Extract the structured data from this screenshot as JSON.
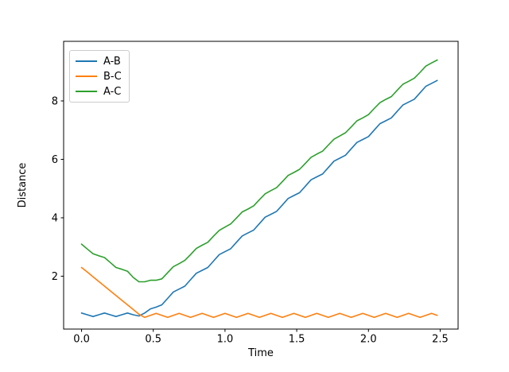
{
  "figure": {
    "background": "#ffffff",
    "axis_color": "#000000",
    "legend_border_color": "#cccccc"
  },
  "chart_data": {
    "type": "line",
    "title": "",
    "xlabel": "Time",
    "ylabel": "Distance",
    "xlim": [
      -0.125,
      2.625
    ],
    "ylim": [
      0.19,
      10.04
    ],
    "xticks": [
      0.0,
      0.5,
      1.0,
      1.5,
      2.0,
      2.5
    ],
    "xtick_labels": [
      "0.0",
      "0.5",
      "1.0",
      "1.5",
      "2.0",
      "2.5"
    ],
    "yticks": [
      2,
      4,
      6,
      8
    ],
    "ytick_labels": [
      "2",
      "4",
      "6",
      "8"
    ],
    "grid": false,
    "legend_position": "upper left",
    "x": [
      0,
      0.04,
      0.08,
      0.12,
      0.16,
      0.2,
      0.24,
      0.28,
      0.32,
      0.36,
      0.4,
      0.44,
      0.48,
      0.52,
      0.56,
      0.6,
      0.64,
      0.68,
      0.72,
      0.76,
      0.8,
      0.84,
      0.88,
      0.92,
      0.96,
      1,
      1.04,
      1.08,
      1.12,
      1.16,
      1.2,
      1.24,
      1.28,
      1.32,
      1.36,
      1.4,
      1.44,
      1.48,
      1.52,
      1.56,
      1.6,
      1.64,
      1.68,
      1.72,
      1.76,
      1.8,
      1.84,
      1.88,
      1.92,
      1.96,
      2,
      2.04,
      2.08,
      2.12,
      2.16,
      2.2,
      2.24,
      2.28,
      2.32,
      2.36,
      2.4,
      2.44,
      2.48
    ],
    "series": [
      {
        "name": "A-B",
        "color": "#1f77b4",
        "values": [
          0.74,
          0.68,
          0.62,
          0.68,
          0.74,
          0.68,
          0.62,
          0.68,
          0.74,
          0.68,
          0.64,
          0.74,
          0.88,
          0.94,
          1.02,
          1.24,
          1.46,
          1.56,
          1.66,
          1.88,
          2.1,
          2.2,
          2.3,
          2.52,
          2.74,
          2.84,
          2.94,
          3.16,
          3.38,
          3.48,
          3.58,
          3.8,
          4.02,
          4.12,
          4.22,
          4.44,
          4.66,
          4.76,
          4.86,
          5.08,
          5.3,
          5.4,
          5.5,
          5.72,
          5.94,
          6.04,
          6.14,
          6.36,
          6.58,
          6.68,
          6.78,
          7,
          7.22,
          7.32,
          7.42,
          7.64,
          7.86,
          7.96,
          8.06,
          8.28,
          8.5,
          8.6,
          8.7
        ]
      },
      {
        "name": "B-C",
        "color": "#ff7f0e",
        "values": [
          2.3,
          2.14,
          1.98,
          1.82,
          1.66,
          1.5,
          1.34,
          1.18,
          1.02,
          0.86,
          0.7,
          0.59,
          0.66,
          0.73,
          0.66,
          0.59,
          0.66,
          0.73,
          0.66,
          0.59,
          0.66,
          0.73,
          0.66,
          0.59,
          0.66,
          0.73,
          0.66,
          0.59,
          0.66,
          0.73,
          0.66,
          0.59,
          0.66,
          0.73,
          0.66,
          0.59,
          0.66,
          0.73,
          0.66,
          0.59,
          0.66,
          0.73,
          0.66,
          0.59,
          0.66,
          0.73,
          0.66,
          0.59,
          0.66,
          0.73,
          0.66,
          0.59,
          0.66,
          0.73,
          0.66,
          0.59,
          0.66,
          0.73,
          0.66,
          0.59,
          0.66,
          0.73,
          0.66
        ]
      },
      {
        "name": "A-C",
        "color": "#2ca02c",
        "values": [
          3.1,
          2.93,
          2.77,
          2.7,
          2.64,
          2.47,
          2.3,
          2.24,
          2.17,
          1.96,
          1.81,
          1.81,
          1.86,
          1.86,
          1.91,
          2.12,
          2.33,
          2.43,
          2.54,
          2.74,
          2.95,
          3.06,
          3.16,
          3.37,
          3.57,
          3.68,
          3.79,
          3.99,
          4.2,
          4.3,
          4.41,
          4.62,
          4.82,
          4.93,
          5.03,
          5.24,
          5.45,
          5.55,
          5.66,
          5.86,
          6.07,
          6.18,
          6.28,
          6.49,
          6.69,
          6.8,
          6.91,
          7.11,
          7.32,
          7.42,
          7.53,
          7.74,
          7.94,
          8.05,
          8.15,
          8.36,
          8.57,
          8.67,
          8.78,
          8.98,
          9.19,
          9.3,
          9.4
        ]
      }
    ]
  }
}
